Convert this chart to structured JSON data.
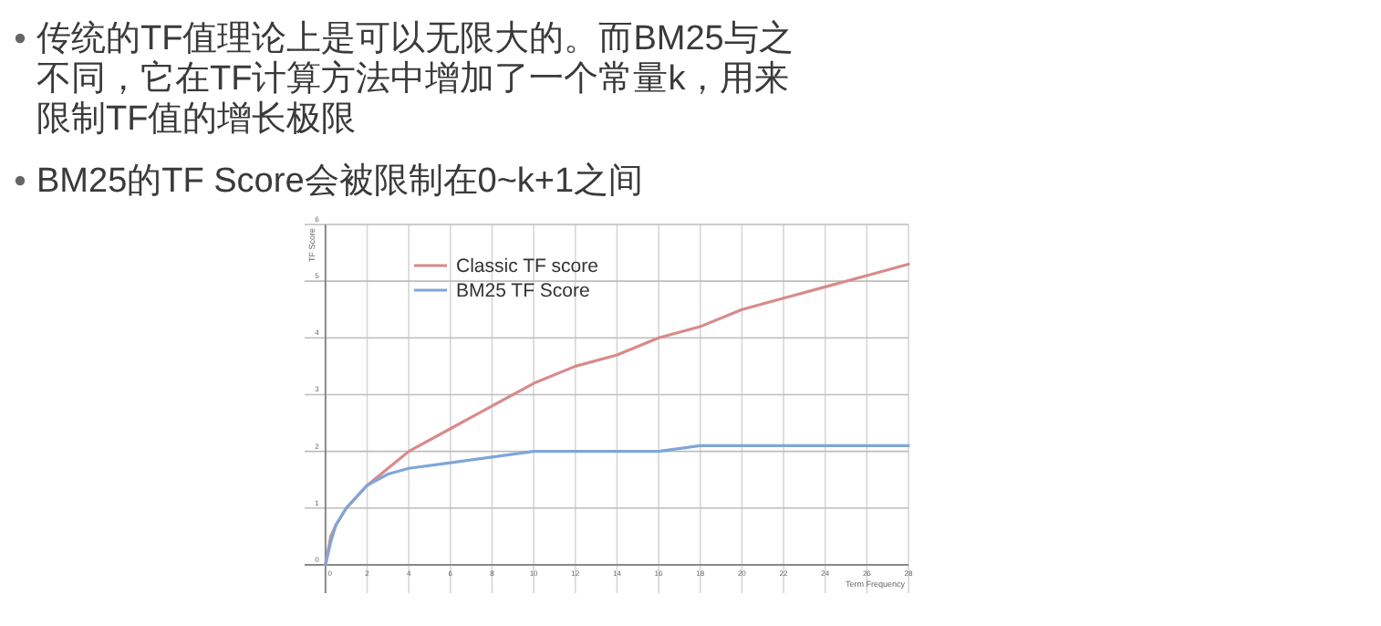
{
  "chart_data": {
    "type": "line",
    "title": "传统的TF值理论上是可以无限大的。而BM25与之不同，它在TF计算方法中增加了一个常量k，用来限制TF值的增长极限",
    "subtitle": "BM25的TF Score会被限制在0~k+1之间",
    "xlabel": "Term Frequency",
    "ylabel": "TF Score",
    "x": [
      0,
      0.25,
      0.5,
      1,
      2,
      3,
      4,
      6,
      8,
      10,
      12,
      14,
      16,
      18,
      20,
      22,
      24,
      26,
      28
    ],
    "series": [
      {
        "name": "Classic TF score",
        "color": "#d98a8a",
        "values": [
          0,
          0.5,
          0.7,
          1,
          1.4,
          1.7,
          2,
          2.4,
          2.8,
          3.2,
          3.5,
          3.7,
          4,
          4.2,
          4.5,
          4.7,
          4.9,
          5.1,
          5.3
        ]
      },
      {
        "name": "BM25 TF Score",
        "color": "#7fa6d9",
        "values": [
          0,
          0.4,
          0.7,
          1,
          1.4,
          1.6,
          1.7,
          1.8,
          1.9,
          2,
          2,
          2,
          2,
          2.1,
          2.1,
          2.1,
          2.1,
          2.1,
          2.1
        ]
      }
    ],
    "xlim": [
      -1,
      28
    ],
    "ylim": [
      -0.5,
      6
    ],
    "xticks": [
      0,
      2,
      4,
      6,
      8,
      10,
      12,
      14,
      16,
      18,
      20,
      22,
      24,
      26,
      28
    ],
    "yticks": [
      0,
      1,
      2,
      3,
      4,
      5,
      6
    ],
    "grid": true,
    "legend": "top left"
  }
}
